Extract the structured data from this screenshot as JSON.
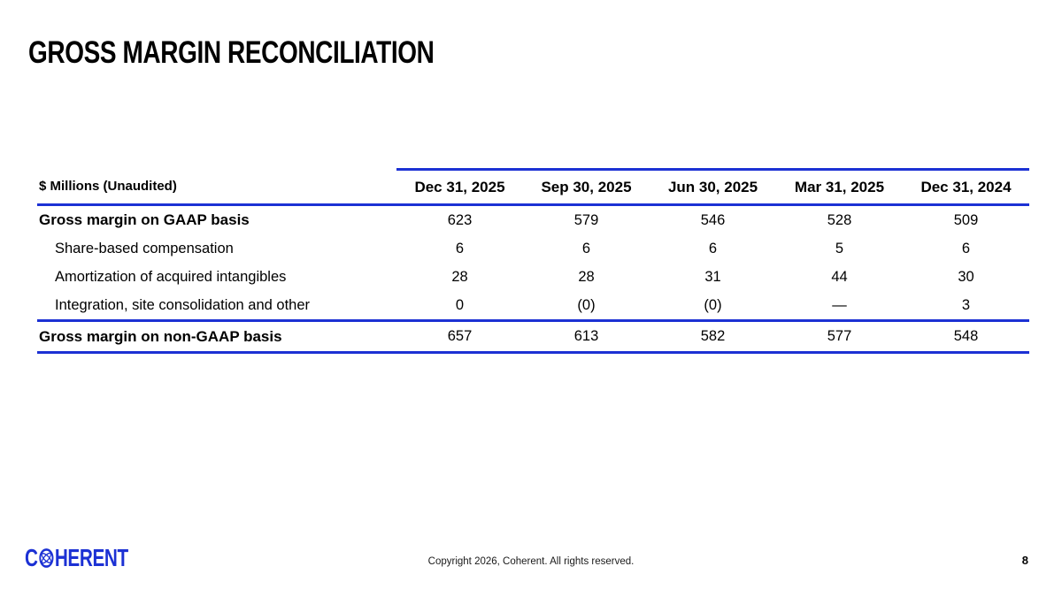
{
  "slide": {
    "title": "GROSS MARGIN RECONCILIATION",
    "page_number": "8",
    "copyright": "Copyright 2026, Coherent. All rights reserved.",
    "logo": {
      "text_before": "C",
      "icon": "atom-globe-icon",
      "text_after": "HERENT"
    }
  },
  "colors": {
    "brand_blue": "#1c31d4",
    "text_black": "#000000"
  },
  "table": {
    "unit_label": "$ Millions (Unaudited)",
    "columns": [
      "Dec 31, 2025",
      "Sep 30, 2025",
      "Jun 30, 2025",
      "Mar 31, 2025",
      "Dec 31, 2024"
    ],
    "rows": [
      {
        "label": "Gross margin on GAAP basis",
        "bold": true,
        "indent": false,
        "values": [
          "623",
          "579",
          "546",
          "528",
          "509"
        ]
      },
      {
        "label": "Share-based compensation",
        "bold": false,
        "indent": true,
        "values": [
          "6",
          "6",
          "6",
          "5",
          "6"
        ]
      },
      {
        "label": "Amortization of acquired intangibles",
        "bold": false,
        "indent": true,
        "values": [
          "28",
          "28",
          "31",
          "44",
          "30"
        ]
      },
      {
        "label": "Integration, site consolidation and other",
        "bold": false,
        "indent": true,
        "values": [
          "0",
          "(0)",
          "(0)",
          "—",
          "3"
        ]
      },
      {
        "label": "Gross margin on non-GAAP basis",
        "bold": true,
        "indent": false,
        "values": [
          "657",
          "613",
          "582",
          "577",
          "548"
        ]
      }
    ]
  }
}
